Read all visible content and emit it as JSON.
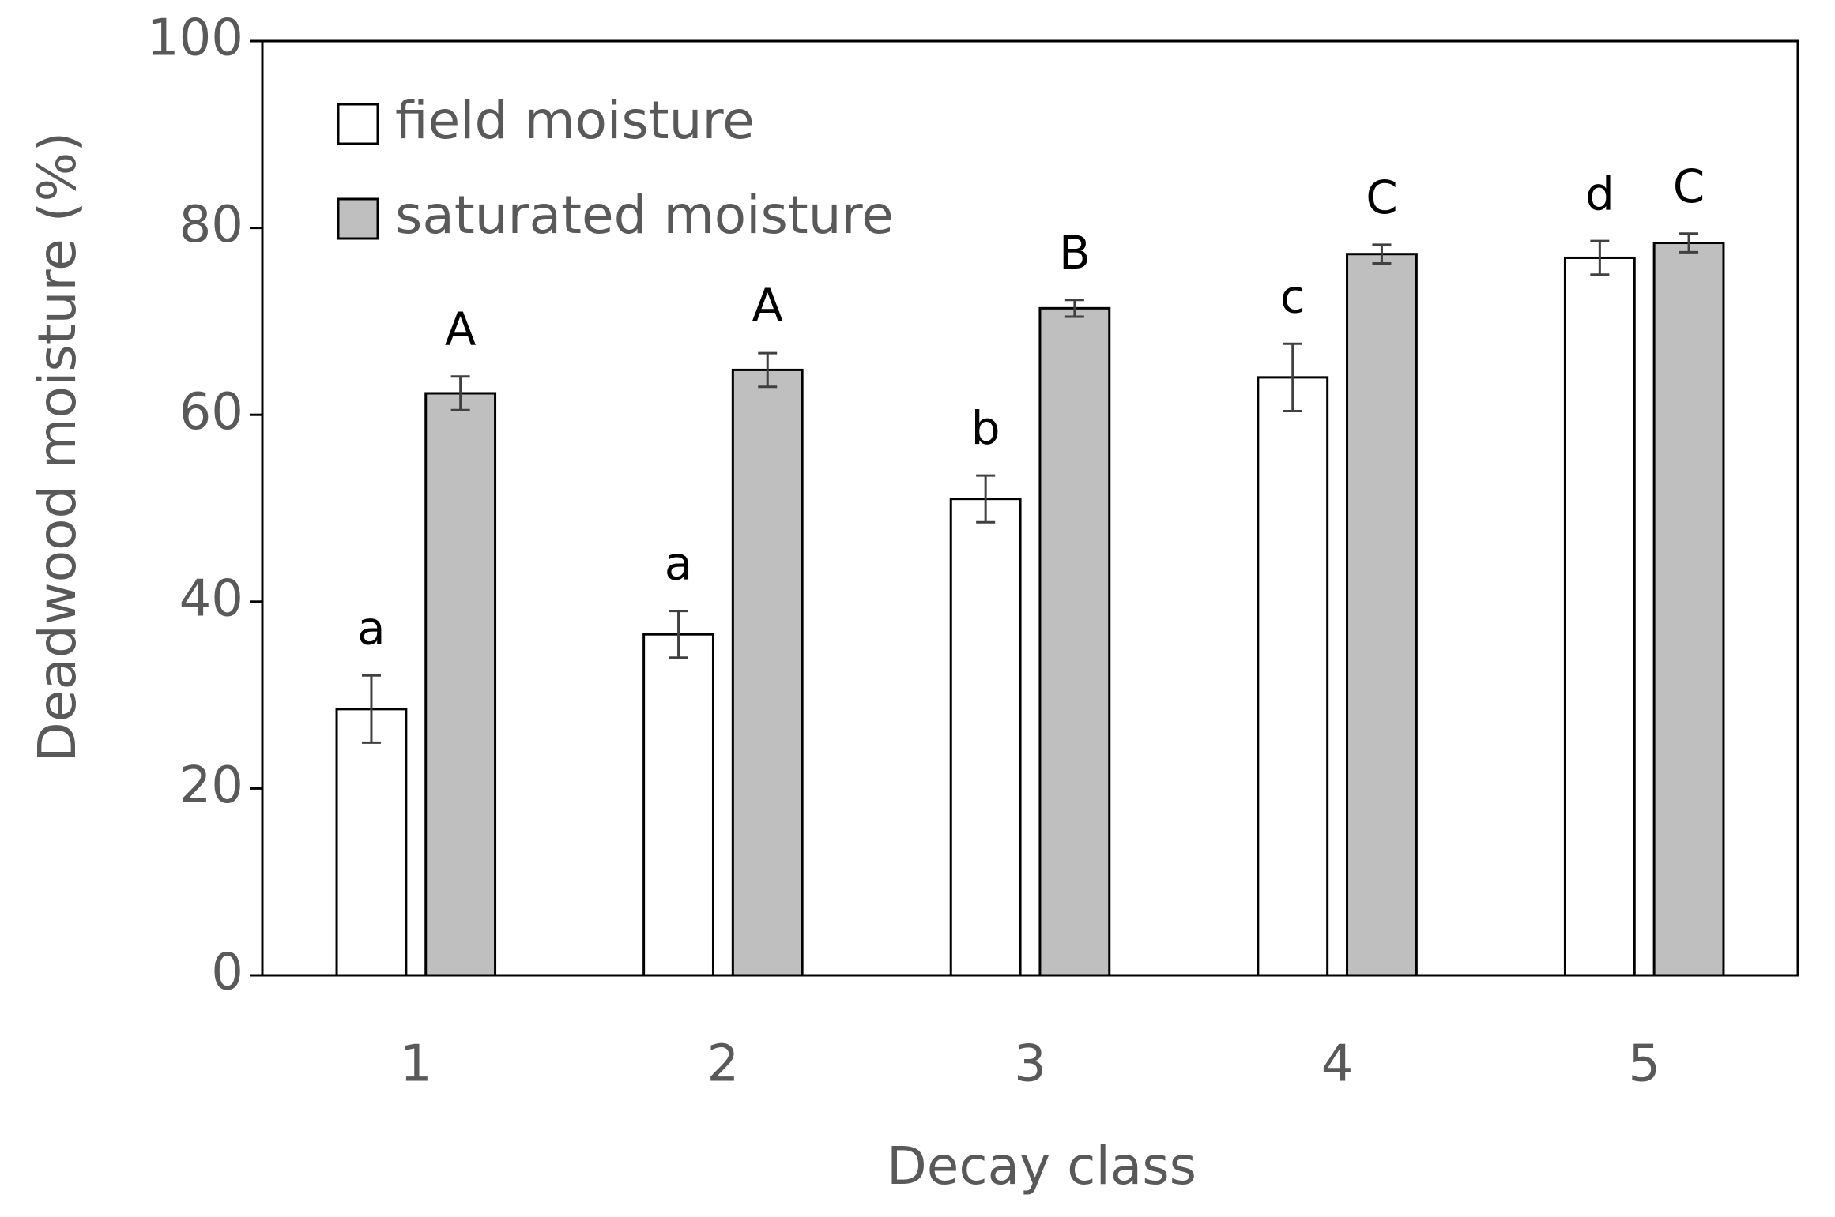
{
  "chart_data": {
    "type": "bar",
    "x_label": "Decay class",
    "y_label": "Deadwood moisture (%)",
    "categories": [
      "1",
      "2",
      "3",
      "4",
      "5"
    ],
    "series": [
      {
        "name": "field moisture",
        "color": "#ffffff",
        "values": [
          28.5,
          36.5,
          51,
          64,
          76.8
        ],
        "errors": [
          3.6,
          2.5,
          2.5,
          3.6,
          1.8
        ],
        "annotations": [
          "a",
          "a",
          "b",
          "c",
          "d"
        ]
      },
      {
        "name": "saturated moisture",
        "color": "#bfbfbf",
        "values": [
          62.3,
          64.8,
          71.4,
          77.2,
          78.4
        ],
        "errors": [
          1.8,
          1.8,
          0.9,
          1.0,
          1.0
        ],
        "annotations": [
          "A",
          "A",
          "B",
          "C",
          "C"
        ]
      }
    ],
    "ylim": [
      0,
      100
    ],
    "yticks": [
      0,
      20,
      40,
      60,
      80,
      100
    ],
    "grid": false,
    "legend": "upper left"
  }
}
